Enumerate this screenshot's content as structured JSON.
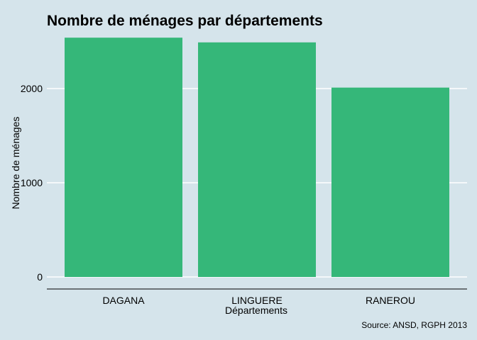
{
  "chart_data": {
    "type": "bar",
    "title": "Nombre de ménages par départements",
    "xlabel": "Départements",
    "ylabel": "Nombre de ménages",
    "caption": "Source: ANSD, RGPH 2013",
    "categories": [
      "DAGANA",
      "LINGUERE",
      "RANEROU"
    ],
    "values": [
      2540,
      2490,
      2010
    ],
    "ylim": [
      0,
      2550
    ],
    "yticks": [
      0,
      1000,
      2000
    ],
    "ytick_labels": [
      "0",
      "1000",
      "2000"
    ],
    "grid": "horizontal",
    "colors": {
      "bar": "#35b779",
      "background": "#d5e4eb",
      "grid": "#ffffff",
      "axis": "#000000"
    }
  }
}
